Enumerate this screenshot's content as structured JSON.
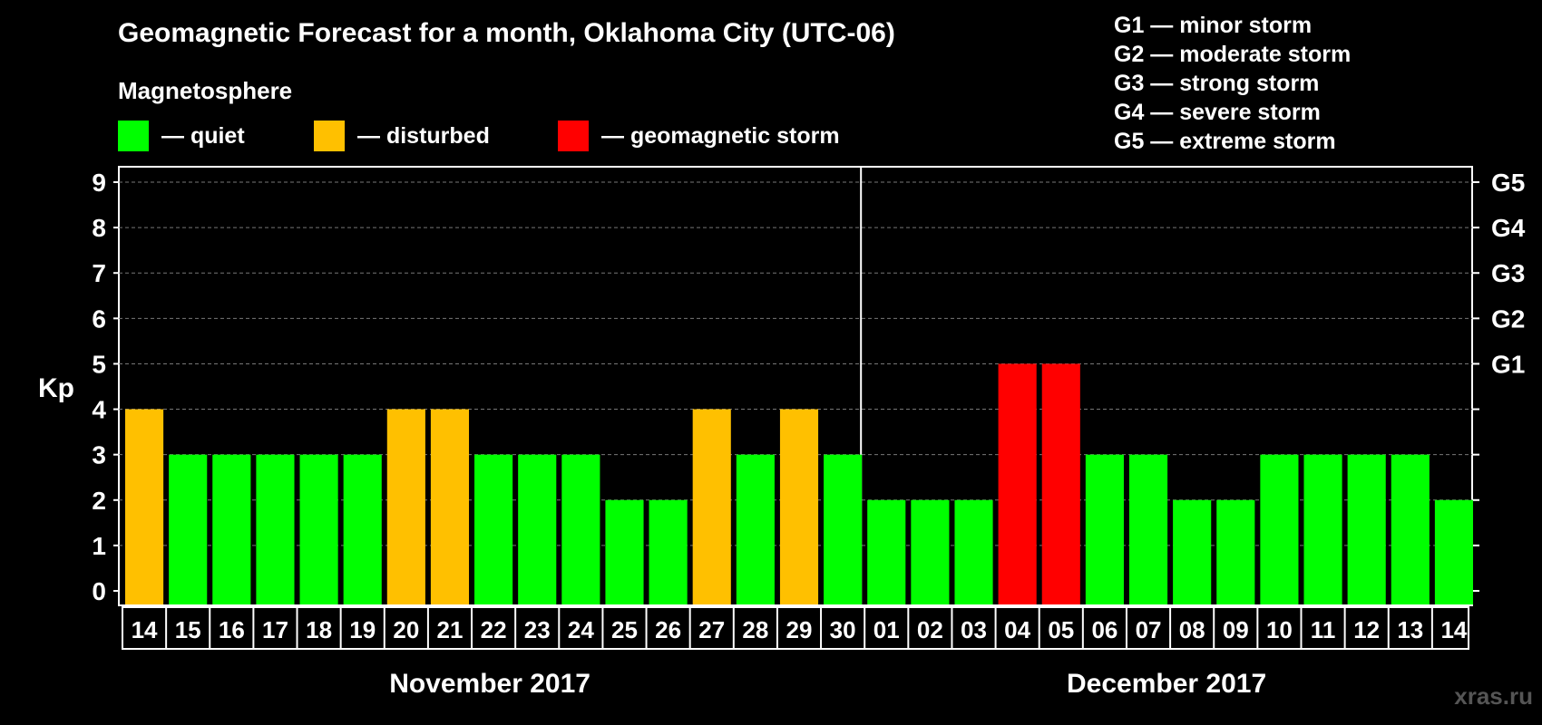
{
  "chart_data": {
    "type": "bar",
    "title": "Geomagnetic Forecast for a month, Oklahoma City (UTC-06)",
    "subtitle": "Magnetosphere",
    "ylabel": "Kp",
    "ylim": [
      0,
      9
    ],
    "y_ticks": [
      "0",
      "1",
      "2",
      "3",
      "4",
      "5",
      "6",
      "7",
      "8",
      "9"
    ],
    "right_axis_labels": [
      {
        "kp": 5,
        "label": "G1"
      },
      {
        "kp": 6,
        "label": "G2"
      },
      {
        "kp": 7,
        "label": "G3"
      },
      {
        "kp": 8,
        "label": "G4"
      },
      {
        "kp": 9,
        "label": "G5"
      }
    ],
    "legend": [
      {
        "label": "— quiet",
        "color": "#00ff00"
      },
      {
        "label": "— disturbed",
        "color": "#ffc000"
      },
      {
        "label": "— geomagnetic storm",
        "color": "#ff0000"
      }
    ],
    "g_scale": [
      "G1 — minor storm",
      "G2 — moderate storm",
      "G3 — strong storm",
      "G4 — severe storm",
      "G5 — extreme storm"
    ],
    "months": [
      {
        "label": "November 2017",
        "days": [
          "14",
          "15",
          "16",
          "17",
          "18",
          "19",
          "20",
          "21",
          "22",
          "23",
          "24",
          "25",
          "26",
          "27",
          "28",
          "29",
          "30"
        ]
      },
      {
        "label": "December 2017",
        "days": [
          "01",
          "02",
          "03",
          "04",
          "05",
          "06",
          "07",
          "08",
          "09",
          "10",
          "11",
          "12",
          "13",
          "14"
        ]
      }
    ],
    "categories": [
      "14",
      "15",
      "16",
      "17",
      "18",
      "19",
      "20",
      "21",
      "22",
      "23",
      "24",
      "25",
      "26",
      "27",
      "28",
      "29",
      "30",
      "01",
      "02",
      "03",
      "04",
      "05",
      "06",
      "07",
      "08",
      "09",
      "10",
      "11",
      "12",
      "13",
      "14"
    ],
    "values": [
      4,
      3,
      3,
      3,
      3,
      3,
      4,
      4,
      3,
      3,
      3,
      2,
      2,
      4,
      3,
      4,
      3,
      2,
      2,
      2,
      5,
      5,
      3,
      3,
      2,
      2,
      3,
      3,
      3,
      3,
      2
    ],
    "colors": {
      "quiet": "#00ff00",
      "disturbed": "#ffc000",
      "storm": "#ff0000"
    },
    "grid": true
  },
  "watermark": "xras.ru"
}
